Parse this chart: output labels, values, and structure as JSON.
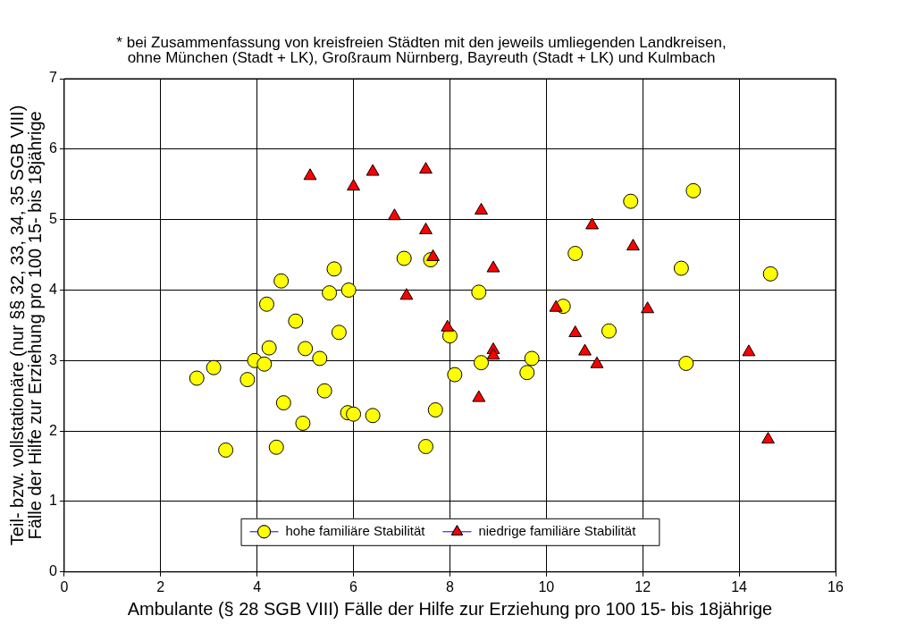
{
  "chart_data": {
    "type": "scatter",
    "subtitle": "* bei Zusammenfassung von kreisfreien Städten mit den jeweils umliegenden Landkreisen,\nohne München (Stadt + LK), Großraum Nürnberg, Bayreuth (Stadt + LK) und Kulmbach",
    "xlabel": "Ambulante (§ 28 SGB VIII) Fälle der Hilfe zur Erziehung pro 100 15- bis 18jährige",
    "ylabel": "Teil- bzw. vollstationäre (nur §§ 32, 33, 34, 35 SGB VIII)\nFälle der Hilfe zur Erziehung pro 100 15- bis 18jährige",
    "xlim": [
      0,
      16
    ],
    "xticks": [
      0,
      2,
      4,
      6,
      8,
      10,
      12,
      14,
      16
    ],
    "ylim": [
      0,
      7
    ],
    "yticks": [
      0,
      1,
      2,
      3,
      4,
      5,
      6,
      7
    ],
    "grid": true,
    "legend": "bottom",
    "series": [
      {
        "name": "hohe familiäre Stabilität",
        "color": "#ffff00",
        "marker": "circle",
        "x": [
          2.75,
          3.1,
          3.35,
          3.8,
          3.95,
          4.15,
          4.2,
          4.25,
          4.4,
          4.5,
          4.55,
          4.8,
          4.95,
          5.0,
          5.3,
          5.4,
          5.5,
          5.6,
          5.7,
          5.9,
          5.88,
          6.0,
          6.4,
          7.05,
          7.5,
          7.6,
          7.7,
          8.0,
          8.1,
          8.6,
          8.65,
          9.6,
          9.7,
          10.35,
          10.6,
          11.3,
          11.75,
          12.8,
          12.9,
          13.05,
          14.65
        ],
        "values": [
          2.75,
          2.9,
          1.73,
          2.73,
          3.0,
          2.95,
          3.8,
          3.18,
          1.77,
          4.13,
          2.4,
          3.56,
          2.11,
          3.17,
          3.03,
          2.57,
          3.96,
          4.3,
          3.4,
          4.0,
          2.26,
          2.24,
          2.22,
          4.45,
          1.78,
          4.43,
          2.3,
          3.35,
          2.8,
          3.97,
          2.97,
          2.83,
          3.03,
          3.77,
          4.52,
          3.42,
          5.26,
          4.31,
          2.96,
          5.41,
          4.23
        ]
      },
      {
        "name": "niedrige familiäre Stabilität",
        "color": "#ff0000",
        "marker": "triangle",
        "x": [
          5.1,
          6.0,
          6.4,
          7.5,
          6.85,
          7.5,
          7.65,
          7.1,
          7.95,
          8.6,
          8.65,
          8.9,
          8.9,
          8.9,
          10.2,
          10.6,
          10.8,
          10.95,
          11.05,
          11.8,
          12.1,
          14.2,
          14.6
        ],
        "values": [
          5.62,
          5.47,
          5.68,
          5.71,
          5.05,
          4.85,
          4.47,
          3.92,
          3.47,
          2.47,
          5.13,
          4.31,
          3.15,
          3.07,
          3.75,
          3.39,
          3.13,
          4.92,
          2.95,
          4.62,
          3.73,
          3.12,
          1.88
        ]
      }
    ]
  }
}
